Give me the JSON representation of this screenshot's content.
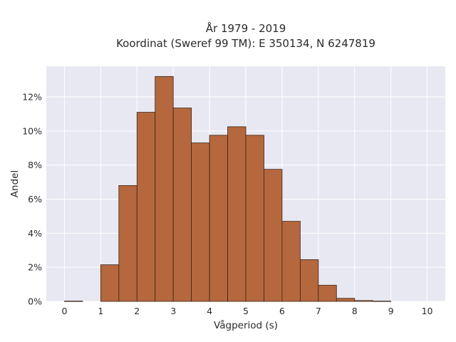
{
  "chart_data": {
    "type": "bar",
    "title_line1": "År 1979 - 2019",
    "title_line2": "Koordinat (Sweref 99 TM): E 350134, N 6247819",
    "xlabel": "Vågperiod (s)",
    "ylabel": "Andel",
    "x_ticks": [
      "0",
      "1",
      "2",
      "3",
      "4",
      "5",
      "6",
      "7",
      "8",
      "9",
      "10"
    ],
    "y_ticks": [
      "0%",
      "2%",
      "4%",
      "6%",
      "8%",
      "10%",
      "12%"
    ],
    "y_tick_values": [
      0,
      2,
      4,
      6,
      8,
      10,
      12
    ],
    "xlim": [
      -0.5,
      10.5
    ],
    "ylim": [
      0,
      13.8
    ],
    "grid": true,
    "bin_width": 0.5,
    "bins": [
      {
        "start": 0.0,
        "value": 0.02
      },
      {
        "start": 0.5,
        "value": 0.0
      },
      {
        "start": 1.0,
        "value": 2.15
      },
      {
        "start": 1.5,
        "value": 6.8
      },
      {
        "start": 2.0,
        "value": 11.1
      },
      {
        "start": 2.5,
        "value": 13.2
      },
      {
        "start": 3.0,
        "value": 11.35
      },
      {
        "start": 3.5,
        "value": 9.3
      },
      {
        "start": 4.0,
        "value": 9.75
      },
      {
        "start": 4.5,
        "value": 10.25
      },
      {
        "start": 5.0,
        "value": 9.75
      },
      {
        "start": 5.5,
        "value": 7.75
      },
      {
        "start": 6.0,
        "value": 4.7
      },
      {
        "start": 6.5,
        "value": 2.45
      },
      {
        "start": 7.0,
        "value": 0.95
      },
      {
        "start": 7.5,
        "value": 0.18
      },
      {
        "start": 8.0,
        "value": 0.05
      },
      {
        "start": 8.5,
        "value": 0.02
      }
    ],
    "colors": {
      "bar_fill": "#b5683d",
      "bar_stroke": "#3a2416",
      "plot_bg": "#e8e8f2",
      "grid": "#ffffff"
    }
  }
}
